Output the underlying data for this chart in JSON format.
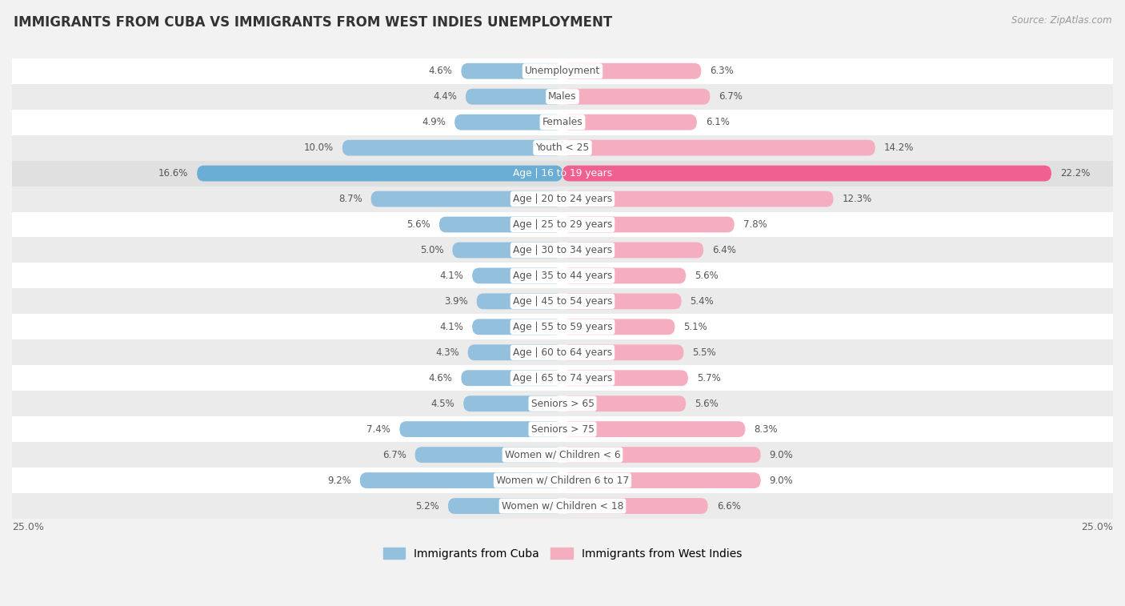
{
  "title": "IMMIGRANTS FROM CUBA VS IMMIGRANTS FROM WEST INDIES UNEMPLOYMENT",
  "source": "Source: ZipAtlas.com",
  "categories": [
    "Unemployment",
    "Males",
    "Females",
    "Youth < 25",
    "Age | 16 to 19 years",
    "Age | 20 to 24 years",
    "Age | 25 to 29 years",
    "Age | 30 to 34 years",
    "Age | 35 to 44 years",
    "Age | 45 to 54 years",
    "Age | 55 to 59 years",
    "Age | 60 to 64 years",
    "Age | 65 to 74 years",
    "Seniors > 65",
    "Seniors > 75",
    "Women w/ Children < 6",
    "Women w/ Children 6 to 17",
    "Women w/ Children < 18"
  ],
  "cuba_values": [
    4.6,
    4.4,
    4.9,
    10.0,
    16.6,
    8.7,
    5.6,
    5.0,
    4.1,
    3.9,
    4.1,
    4.3,
    4.6,
    4.5,
    7.4,
    6.7,
    9.2,
    5.2
  ],
  "westindies_values": [
    6.3,
    6.7,
    6.1,
    14.2,
    22.2,
    12.3,
    7.8,
    6.4,
    5.6,
    5.4,
    5.1,
    5.5,
    5.7,
    5.6,
    8.3,
    9.0,
    9.0,
    6.6
  ],
  "cuba_color": "#92c0dd",
  "cuba_color_highlight": "#6aaed6",
  "westindies_color": "#f5adc0",
  "westindies_color_highlight": "#f06090",
  "bg_color": "#f2f2f2",
  "row_colors": [
    "#ffffff",
    "#ebebeb"
  ],
  "highlight_row_color": "#e0e0e0",
  "max_value": 25.0,
  "legend_cuba": "Immigrants from Cuba",
  "legend_westindies": "Immigrants from West Indies",
  "val_fontsize": 8.5,
  "cat_fontsize": 8.8,
  "title_fontsize": 12,
  "source_fontsize": 8.5
}
